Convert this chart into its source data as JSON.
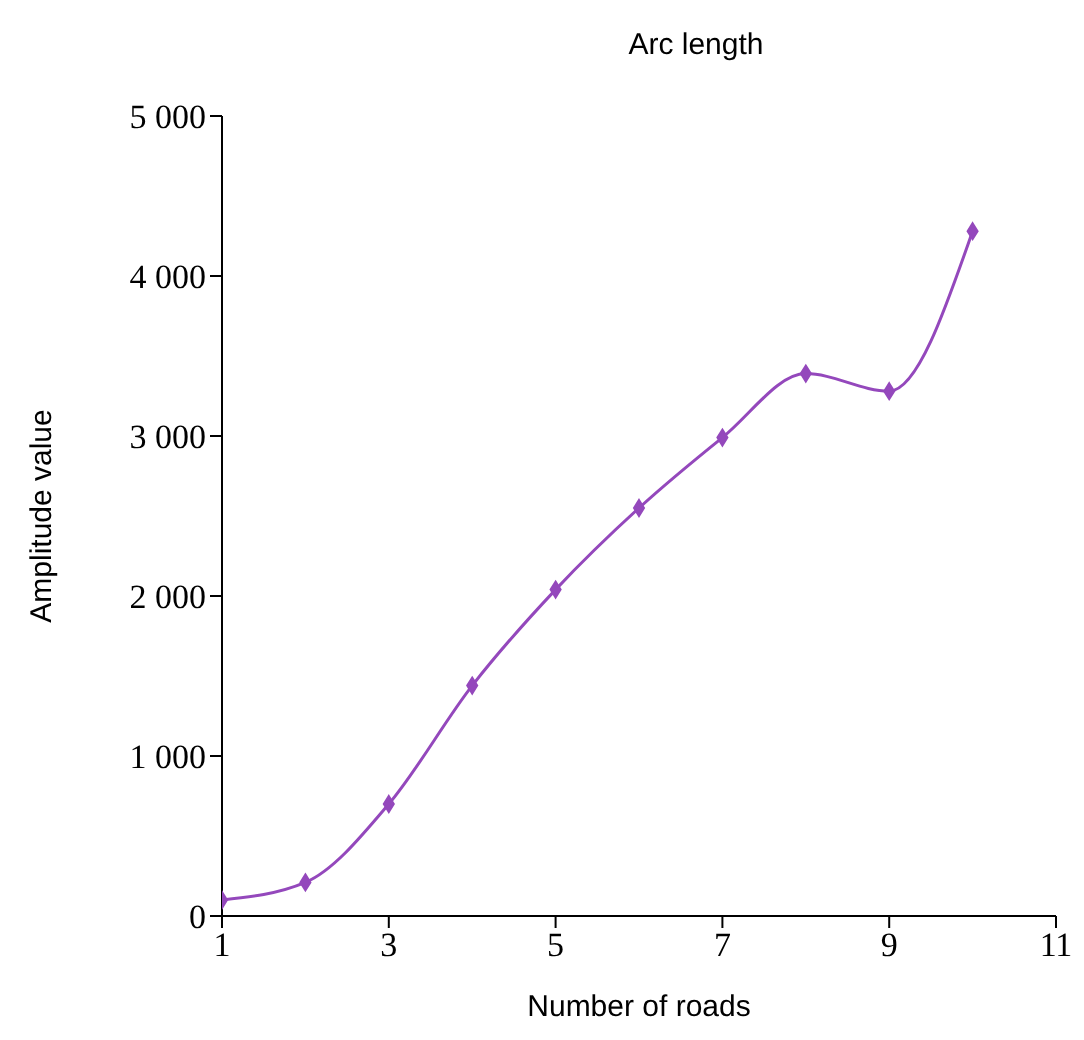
{
  "chart_data": {
    "type": "line",
    "title": "Arc length",
    "xlabel": "Number of roads",
    "ylabel": "Amplitude value",
    "x": [
      1,
      2,
      3,
      4,
      5,
      6,
      7,
      8,
      9,
      10
    ],
    "series": [
      {
        "color": "#9448bc",
        "values": [
          100,
          210,
          700,
          1440,
          2040,
          2550,
          2990,
          3390,
          3280,
          4280
        ]
      }
    ],
    "xlim": [
      1,
      11
    ],
    "xticks": [
      1,
      3,
      5,
      7,
      9,
      11
    ],
    "ylim": [
      0,
      5000
    ],
    "yticks": [
      0,
      {
        "value": 1000,
        "label": "1 000"
      },
      {
        "value": 2000,
        "label": "2 000"
      },
      {
        "value": 3000,
        "label": "3 000"
      },
      {
        "value": 4000,
        "label": "4 000"
      },
      {
        "value": 5000,
        "label": "5 000"
      }
    ],
    "grid": false,
    "legend": false,
    "marker": "diamond",
    "line_style": "solid"
  }
}
